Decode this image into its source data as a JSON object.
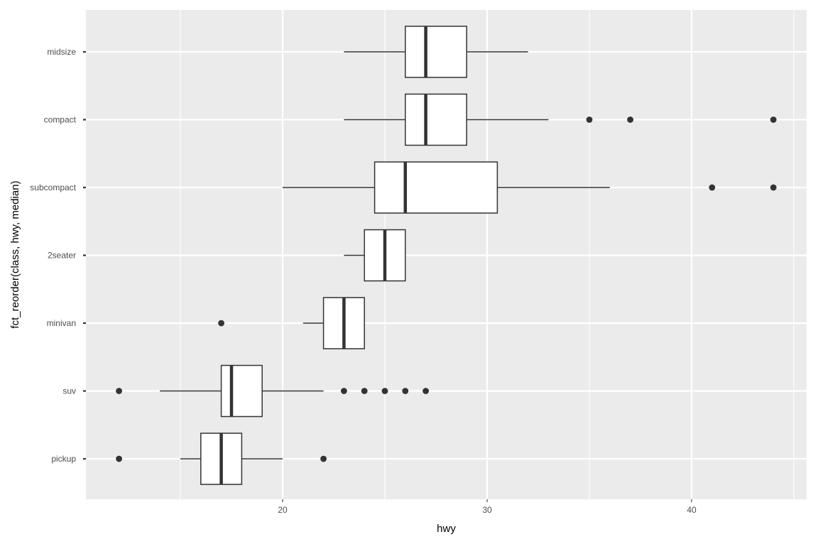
{
  "chart_data": {
    "type": "boxplot",
    "orientation": "horizontal",
    "title": "",
    "xlabel": "hwy",
    "ylabel": "fct_reorder(class, hwy, median)",
    "xlim": [
      11,
      45
    ],
    "x_ticks": [
      20,
      30,
      40
    ],
    "x_tick_labels": [
      "20",
      "30",
      "40"
    ],
    "grid": true,
    "legend": "none",
    "categories": [
      "midsize",
      "compact",
      "subcompact",
      "2seater",
      "minivan",
      "suv",
      "pickup"
    ],
    "boxes": [
      {
        "category": "midsize",
        "whisker_low": 23,
        "q1": 26,
        "median": 27,
        "q3": 29,
        "whisker_high": 32,
        "outliers": []
      },
      {
        "category": "compact",
        "whisker_low": 23,
        "q1": 26,
        "median": 27,
        "q3": 29,
        "whisker_high": 33,
        "outliers": [
          35,
          37,
          44
        ]
      },
      {
        "category": "subcompact",
        "whisker_low": 20,
        "q1": 24.5,
        "median": 26,
        "q3": 30.5,
        "whisker_high": 36,
        "outliers": [
          41,
          44
        ]
      },
      {
        "category": "2seater",
        "whisker_low": 23,
        "q1": 24,
        "median": 25,
        "q3": 26,
        "whisker_high": 26,
        "outliers": []
      },
      {
        "category": "minivan",
        "whisker_low": 21,
        "q1": 22,
        "median": 23,
        "q3": 24,
        "whisker_high": 24,
        "outliers": [
          17
        ]
      },
      {
        "category": "suv",
        "whisker_low": 14,
        "q1": 17,
        "median": 17.5,
        "q3": 19,
        "whisker_high": 22,
        "outliers": [
          12,
          23,
          24,
          25,
          26,
          27
        ]
      },
      {
        "category": "pickup",
        "whisker_low": 15,
        "q1": 16,
        "median": 17,
        "q3": 18,
        "whisker_high": 20,
        "outliers": [
          12,
          22
        ]
      }
    ],
    "colors": {
      "panel_background": "#ebebeb",
      "grid_major": "#ffffff",
      "box_fill": "#ffffff",
      "box_stroke": "#333333",
      "outlier": "#333333",
      "tick_label": "#4d4d4d",
      "axis_title": "#000000"
    }
  }
}
